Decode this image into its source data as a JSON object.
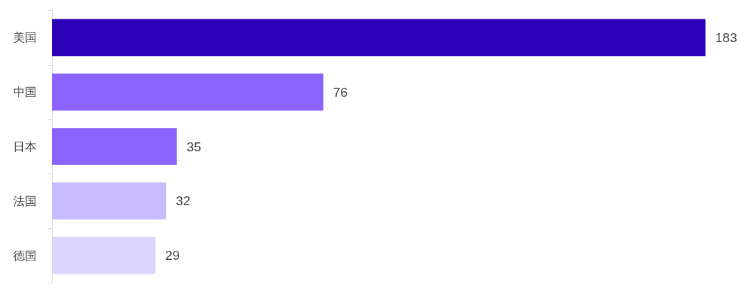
{
  "chart_data": {
    "type": "bar",
    "orientation": "horizontal",
    "categories": [
      "美国",
      "中国",
      "日本",
      "法国",
      "德国"
    ],
    "values": [
      183,
      76,
      35,
      32,
      29
    ],
    "colors": [
      "#2e00b8",
      "#8b63ff",
      "#8b63ff",
      "#c8bcff",
      "#dcd6ff"
    ],
    "data_labels": true
  }
}
